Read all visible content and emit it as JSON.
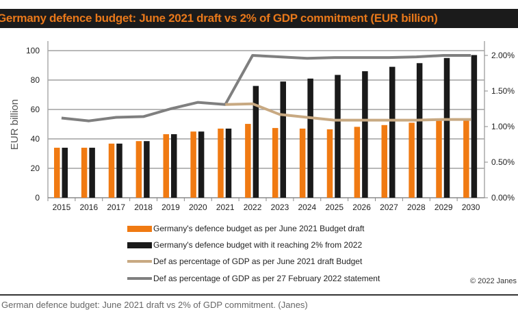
{
  "chart_data": {
    "type": "bar",
    "title": "Germany defence budget: June 2021 draft vs 2% of GDP commitment (EUR billion)",
    "xlabel": "",
    "ylabel": "EUR billion",
    "ylim": [
      0,
      100
    ],
    "y2lim": [
      0,
      2
    ],
    "yticks": [
      "0",
      "20",
      "40",
      "60",
      "80",
      "100"
    ],
    "y2ticks": [
      "0.00%",
      "0.50%",
      "1.00%",
      "1.50%",
      "2.00%"
    ],
    "categories": [
      "2015",
      "2016",
      "2017",
      "2018",
      "2019",
      "2020",
      "2021",
      "2022",
      "2023",
      "2024",
      "2025",
      "2026",
      "2027",
      "2028",
      "2029",
      "2030"
    ],
    "series": [
      {
        "name": "Germany's defence budget as per June 2021  Budget draft",
        "type": "bar",
        "axis": "left",
        "color": "#f07a12",
        "values": [
          34,
          34,
          36.8,
          38.5,
          43.2,
          45,
          47,
          50.2,
          47.4,
          47,
          46.5,
          48.2,
          49.4,
          51,
          52.3,
          52.5
        ]
      },
      {
        "name": "Germany's defence budget with it reaching 2% from 2022",
        "type": "bar",
        "axis": "left",
        "color": "#1a1a1a",
        "values": [
          34,
          34,
          36.8,
          38.5,
          43.2,
          45,
          47,
          76,
          79,
          81,
          83.5,
          86,
          89,
          91.5,
          95,
          97
        ]
      },
      {
        "name": "Def as percentage of GDP as per June 2021 draft Budget",
        "type": "line",
        "axis": "right",
        "color": "#c8a982",
        "values": [
          null,
          null,
          null,
          null,
          null,
          null,
          1.31,
          1.32,
          1.17,
          1.13,
          1.09,
          1.09,
          1.09,
          1.09,
          1.1,
          1.1
        ]
      },
      {
        "name": "Def as percentage of GDP as per 27 February 2022 statement",
        "type": "line",
        "axis": "right",
        "color": "#7f7f7f",
        "values": [
          1.12,
          1.08,
          1.13,
          1.14,
          1.25,
          1.34,
          1.31,
          2.0,
          1.98,
          1.96,
          1.97,
          1.97,
          1.97,
          1.98,
          2.0,
          2.0
        ]
      }
    ],
    "grid": true,
    "legend": "bottom"
  },
  "copyright": "© 2022 Janes",
  "caption": "German defence budget: June 2021 draft vs 2% of GDP commitment. (Janes)"
}
